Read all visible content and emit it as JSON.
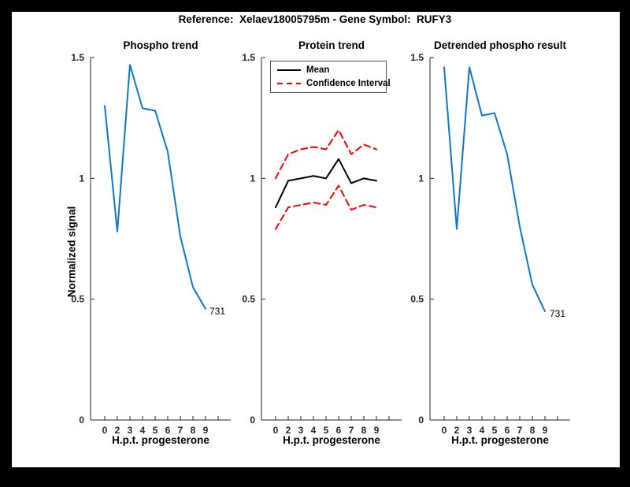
{
  "figure": {
    "title": "Reference:  Xelaev18005795m - Gene Symbol:  RUFY3",
    "border_color": "#000000",
    "background_color": "#ffffff",
    "axes_color": "#262626"
  },
  "chart_data": [
    {
      "id": "phospho-trend",
      "type": "line",
      "title": "Phospho trend",
      "xlabel": "H.p.t. progesterone",
      "ylabel": "Normalized signal",
      "categories": [
        "0",
        "2",
        "3",
        "4",
        "5",
        "6",
        "7",
        "8",
        "9"
      ],
      "ylim": [
        0,
        1.5
      ],
      "yticks": [
        0,
        0.5,
        1,
        1.5
      ],
      "ytick_labels": [
        "0",
        "0.5",
        "1",
        "1.5"
      ],
      "grid": "off",
      "series": [
        {
          "name": "phospho signal",
          "color": "#0b78cb",
          "style": "solid",
          "values": [
            1.3,
            0.78,
            1.47,
            1.29,
            1.28,
            1.11,
            0.76,
            0.55,
            0.46
          ]
        }
      ],
      "annotation": {
        "text": "731",
        "at_index": 8,
        "value": 0.46
      }
    },
    {
      "id": "protein-trend",
      "type": "line",
      "title": "Protein trend",
      "xlabel": "H.p.t. progesterone",
      "categories": [
        "0",
        "2",
        "3",
        "4",
        "5",
        "6",
        "7",
        "8",
        "9"
      ],
      "ylim": [
        0,
        1.5
      ],
      "yticks": [
        0,
        0.5,
        1,
        1.5
      ],
      "ytick_labels": [
        "0",
        "0.5",
        "1",
        "1.5"
      ],
      "grid": "off",
      "legend": {
        "position": "top-left",
        "entries": [
          {
            "label": "Mean",
            "color": "#000000",
            "style": "solid"
          },
          {
            "label": "Confidence Interval",
            "color": "#ff0000",
            "style": "dashed"
          }
        ]
      },
      "series": [
        {
          "name": "Confidence Interval upper",
          "color": "#ff0000",
          "style": "dashed",
          "values": [
            1.0,
            1.1,
            1.12,
            1.13,
            1.12,
            1.2,
            1.1,
            1.14,
            1.12
          ]
        },
        {
          "name": "Confidence Interval lower",
          "color": "#ff0000",
          "style": "dashed",
          "values": [
            0.79,
            0.88,
            0.89,
            0.9,
            0.89,
            0.97,
            0.87,
            0.89,
            0.88
          ]
        },
        {
          "name": "Mean",
          "color": "#000000",
          "style": "solid",
          "values": [
            0.88,
            0.99,
            1.0,
            1.01,
            1.0,
            1.08,
            0.98,
            1.0,
            0.99
          ]
        }
      ]
    },
    {
      "id": "detrended-phospho",
      "type": "line",
      "title": "Detrended phospho result",
      "xlabel": "H.p.t. progesterone",
      "categories": [
        "0",
        "2",
        "3",
        "4",
        "5",
        "6",
        "7",
        "8",
        "9"
      ],
      "ylim": [
        0,
        1.5
      ],
      "yticks": [
        0,
        0.5,
        1,
        1.5
      ],
      "ytick_labels": [
        "0",
        "0.5",
        "1",
        "1.5"
      ],
      "grid": "off",
      "series": [
        {
          "name": "detrended signal",
          "color": "#0b78cb",
          "style": "solid",
          "values": [
            1.46,
            0.79,
            1.46,
            1.26,
            1.27,
            1.1,
            0.8,
            0.56,
            0.45
          ]
        }
      ],
      "annotation": {
        "text": "731",
        "at_index": 8,
        "value": 0.45
      }
    }
  ]
}
